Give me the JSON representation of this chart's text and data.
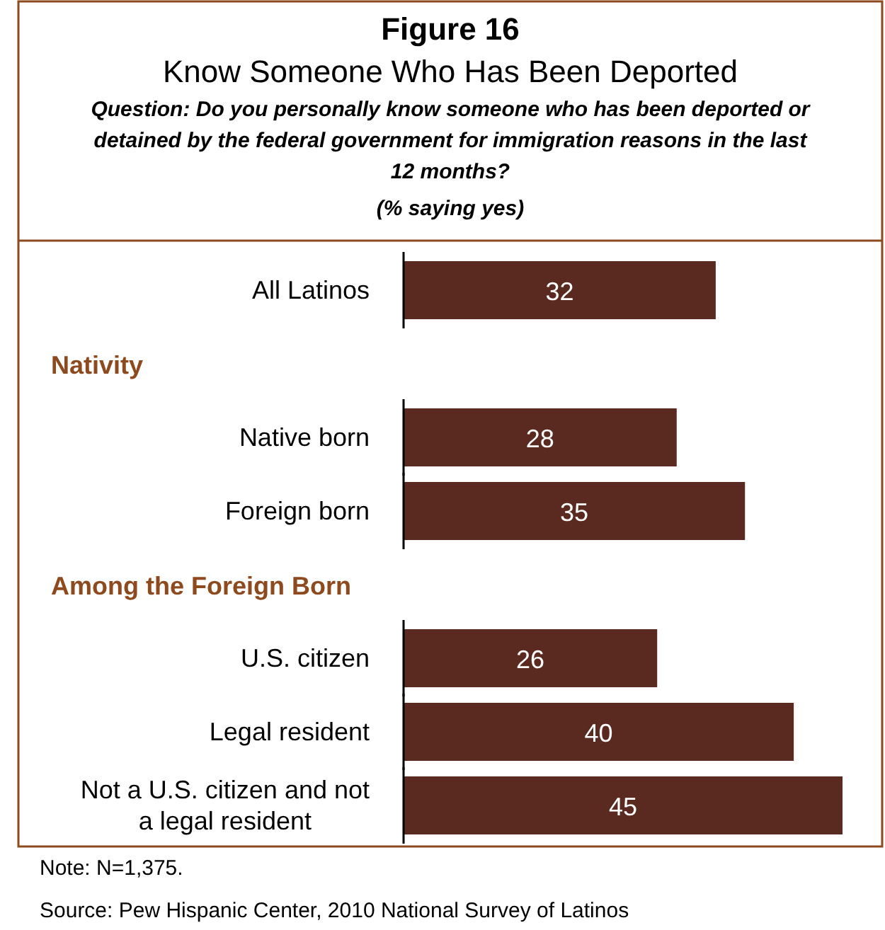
{
  "chart_data": {
    "type": "bar",
    "orientation": "horizontal",
    "title": "Figure 16",
    "subtitle": "Know Someone Who Has Been Deported",
    "annotations": [
      "Question: Do you personally know someone who has been deported or detained by the federal government for immigration reasons in the last 12 months?",
      "(% saying yes)",
      "Nativity",
      "Among the Foreign Born",
      "Note: N=1,375.",
      "Source: Pew Hispanic Center, 2010 National Survey of Latinos"
    ],
    "categories": [
      "All Latinos",
      null,
      "Native born",
      "Foreign born",
      null,
      "U.S. citizen",
      "Legal resident",
      "Not a U.S. citizen and not a legal resident"
    ],
    "values": [
      32,
      null,
      28,
      35,
      null,
      26,
      40,
      45
    ],
    "color": "#5a2a20",
    "data_labels": true
  }
}
